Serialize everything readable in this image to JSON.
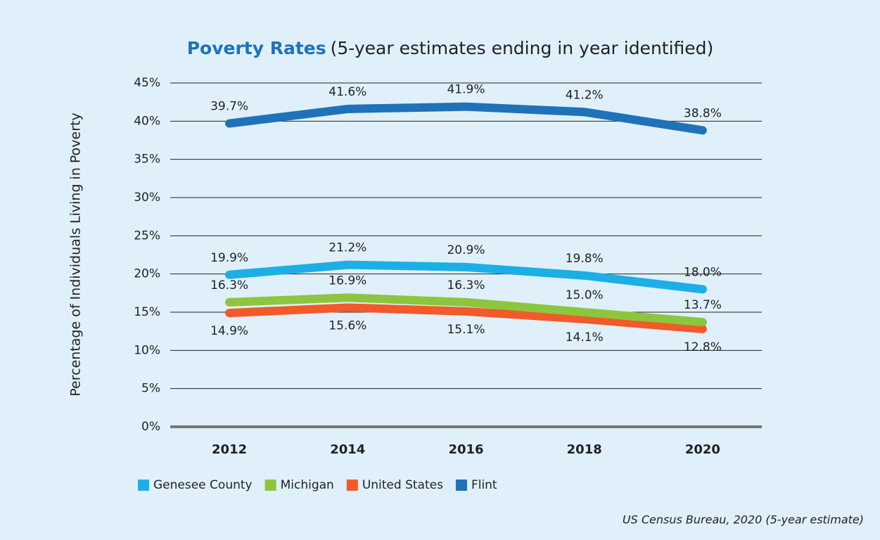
{
  "chart_data": {
    "type": "line",
    "title": "Poverty Rates",
    "subtitle": "(5-year estimates ending in year identified)",
    "y_label": "Percentage of Individuals Living in Poverty",
    "source": "US Census Bureau, 2020 (5-year estimate)",
    "categories": [
      "2012",
      "2014",
      "2016",
      "2018",
      "2020"
    ],
    "series": [
      {
        "name": "Genesee County",
        "color": "#1cafe6",
        "values": [
          19.9,
          21.2,
          20.9,
          19.8,
          18.0
        ],
        "value_labels": [
          "19.9%",
          "21.2%",
          "20.9%",
          "19.8%",
          "18.0%"
        ]
      },
      {
        "name": "Michigan",
        "color": "#8cc63e",
        "values": [
          16.3,
          16.9,
          16.3,
          15.0,
          13.7
        ],
        "value_labels": [
          "16.3%",
          "16.9%",
          "16.3%",
          "15.0%",
          "13.7%"
        ]
      },
      {
        "name": "United States",
        "color": "#f15a2a",
        "values": [
          14.9,
          15.6,
          15.1,
          14.1,
          12.8
        ],
        "value_labels": [
          "14.9%",
          "15.6%",
          "15.1%",
          "14.1%",
          "12.8%"
        ]
      },
      {
        "name": "Flint",
        "color": "#1f72b8",
        "values": [
          39.7,
          41.6,
          41.9,
          41.2,
          38.8
        ],
        "value_labels": [
          "39.7%",
          "41.6%",
          "41.9%",
          "41.2%",
          "38.8%"
        ]
      }
    ],
    "ylim": [
      0,
      45
    ],
    "yticks": [
      {
        "value": 0,
        "label": "0%"
      },
      {
        "value": 5,
        "label": "5%"
      },
      {
        "value": 10,
        "label": "10%"
      },
      {
        "value": 15,
        "label": "15%"
      },
      {
        "value": 20,
        "label": "20%"
      },
      {
        "value": 25,
        "label": "25%"
      },
      {
        "value": 30,
        "label": "30%"
      },
      {
        "value": 35,
        "label": "35%"
      },
      {
        "value": 40,
        "label": "40%"
      },
      {
        "value": 45,
        "label": "45%"
      }
    ],
    "grid": true,
    "legend": "bottom-left"
  }
}
